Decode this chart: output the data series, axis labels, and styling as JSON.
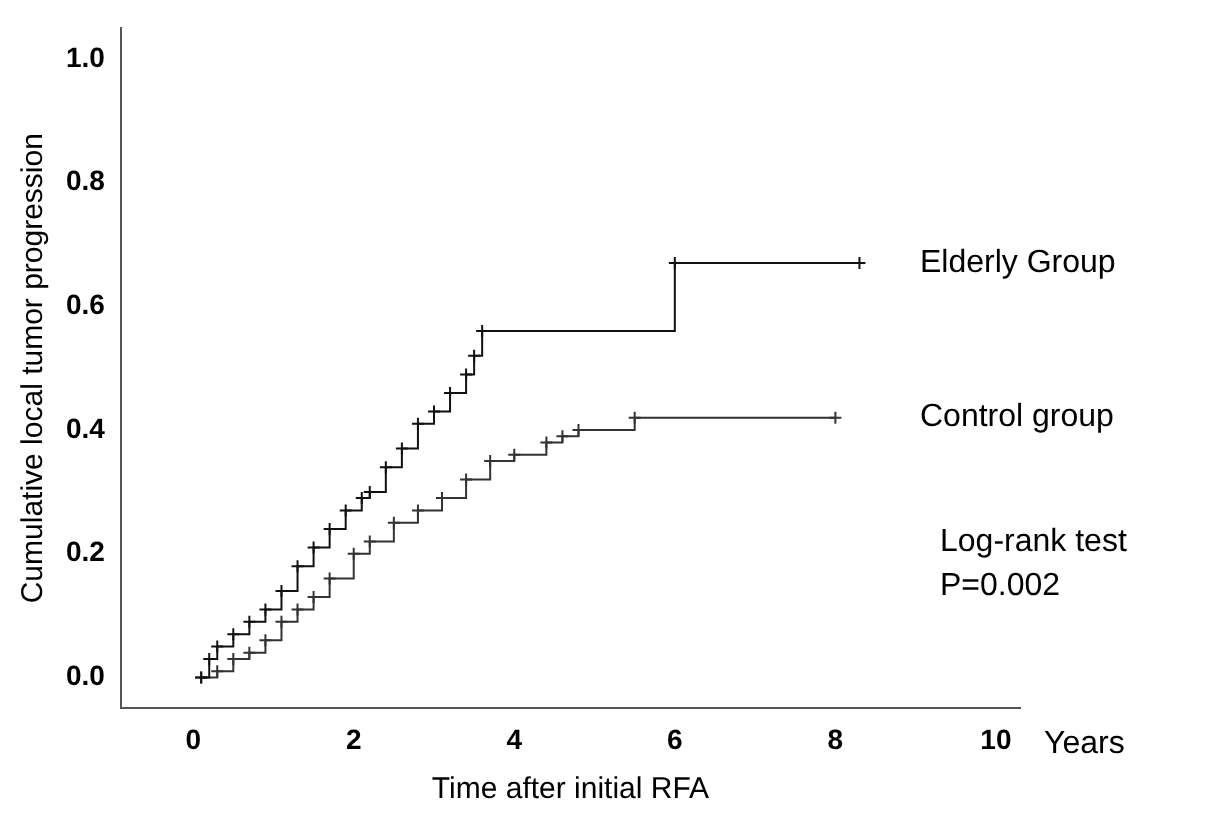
{
  "chart_data": {
    "type": "step",
    "xlabel": "Time after initial RFA",
    "ylabel": "Cumulative local tumor progression",
    "xlim": [
      -0.9,
      10.3
    ],
    "ylim": [
      -0.05,
      1.05
    ],
    "xticks": [
      0,
      2,
      4,
      6,
      8,
      10
    ],
    "yticks": [
      {
        "value": 0,
        "label": "0.0"
      },
      {
        "value": 0.2,
        "label": "0.2"
      },
      {
        "value": 0.4,
        "label": "0.4"
      },
      {
        "value": 0.6,
        "label": "0.6"
      },
      {
        "value": 0.8,
        "label": "0.8"
      },
      {
        "value": 1,
        "label": "1.0"
      }
    ],
    "grid": false,
    "legend": false,
    "marker": "cross",
    "line_style": "solid",
    "series": [
      {
        "name": "Elderly Group",
        "color": "#111111",
        "x": [
          0.1,
          0.2,
          0.3,
          0.5,
          0.7,
          0.9,
          1.1,
          1.3,
          1.5,
          1.7,
          1.9,
          2.1,
          2.2,
          2.4,
          2.6,
          2.8,
          3.0,
          3.2,
          3.4,
          3.5,
          3.6,
          6.0,
          8.3
        ],
        "values": [
          0,
          0.03,
          0.05,
          0.07,
          0.09,
          0.11,
          0.14,
          0.18,
          0.21,
          0.24,
          0.27,
          0.29,
          0.3,
          0.34,
          0.37,
          0.41,
          0.43,
          0.46,
          0.49,
          0.52,
          0.56,
          0.67,
          0.67
        ]
      },
      {
        "name": "Control group",
        "color": "#333333",
        "x": [
          0.1,
          0.3,
          0.5,
          0.7,
          0.9,
          1.1,
          1.3,
          1.5,
          1.7,
          2.0,
          2.2,
          2.5,
          2.8,
          3.1,
          3.4,
          3.7,
          4.0,
          4.4,
          4.6,
          4.8,
          5.5,
          8.0
        ],
        "values": [
          0,
          0.01,
          0.03,
          0.04,
          0.06,
          0.09,
          0.11,
          0.13,
          0.16,
          0.2,
          0.22,
          0.25,
          0.27,
          0.29,
          0.32,
          0.35,
          0.36,
          0.38,
          0.39,
          0.4,
          0.42,
          0.42
        ]
      }
    ],
    "annotations": [
      "Years",
      "Log-rank test\nP=0.002"
    ]
  }
}
